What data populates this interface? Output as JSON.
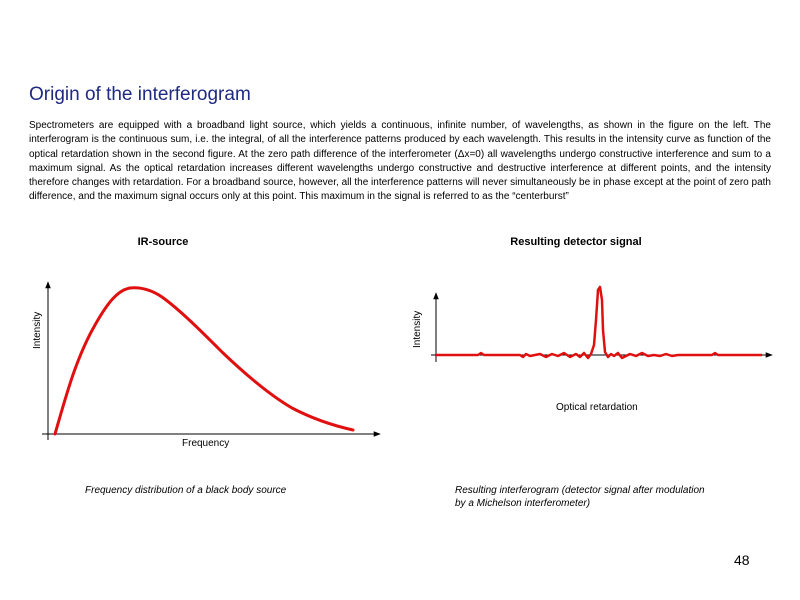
{
  "slide": {
    "title": "Origin of the interferogram",
    "body": "Spectrometers are equipped with a broadband light source, which yields a continuous, infinite number, of wavelengths, as shown in the figure on the left. The interferogram is the continuous sum, i.e. the integral, of all the interference patterns produced by each wavelength. This results in the intensity curve as function of the optical retardation shown in the second figure. At the zero path difference of the interferometer (Δx=0) all wavelengths undergo constructive interference and sum to a maximum signal. As the optical retardation increases different wavelengths undergo constructive and destructive interference at different points, and the intensity therefore changes with retardation. For a broadband source, however, all the interference patterns will never simultaneously be in phase except at the point of zero path difference, and the maximum signal occurs only at this point. This maximum in the signal is referred to as the “centerburst”",
    "page_number": "48"
  },
  "left_figure": {
    "heading": "IR-source",
    "ylabel": "Intensity",
    "xlabel": "Frequency",
    "caption": "Frequency distribution of a black body source"
  },
  "right_figure": {
    "heading": "Resulting  detector signal",
    "ylabel": "Intensity",
    "xlabel": "Optical retardation",
    "caption_line1": "Resulting interferogram (detector signal after modulation",
    "caption_line2": "by a Michelson interferometer)"
  },
  "colors": {
    "curve": "#e01010",
    "title": "#1f2a80",
    "axis": "#000000"
  }
}
